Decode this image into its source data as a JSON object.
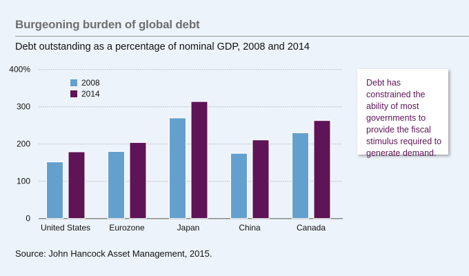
{
  "title": "Burgeoning burden of global debt",
  "subtitle": "Debt outstanding as a percentage of nominal GDP, 2008 and 2014",
  "source": "Source: John Hancock Asset Management, 2015.",
  "callout": "Debt has constrained the ability of most governments to provide the fiscal stimulus required to generate demand.",
  "chart_data": {
    "type": "bar",
    "categories": [
      "United States",
      "Eurozone",
      "Japan",
      "China",
      "Canada"
    ],
    "series": [
      {
        "name": "2008",
        "color": "#64a0cd",
        "values": [
          152,
          180,
          270,
          175,
          230
        ]
      },
      {
        "name": "2014",
        "color": "#5e1456",
        "values": [
          179,
          204,
          314,
          211,
          263
        ]
      }
    ],
    "ylim": [
      0,
      400
    ],
    "yticks": [
      0,
      100,
      200,
      300,
      400
    ],
    "ytick_labels": [
      "0",
      "100",
      "200",
      "300",
      "400%"
    ],
    "grid": true,
    "legend": "top-left"
  }
}
